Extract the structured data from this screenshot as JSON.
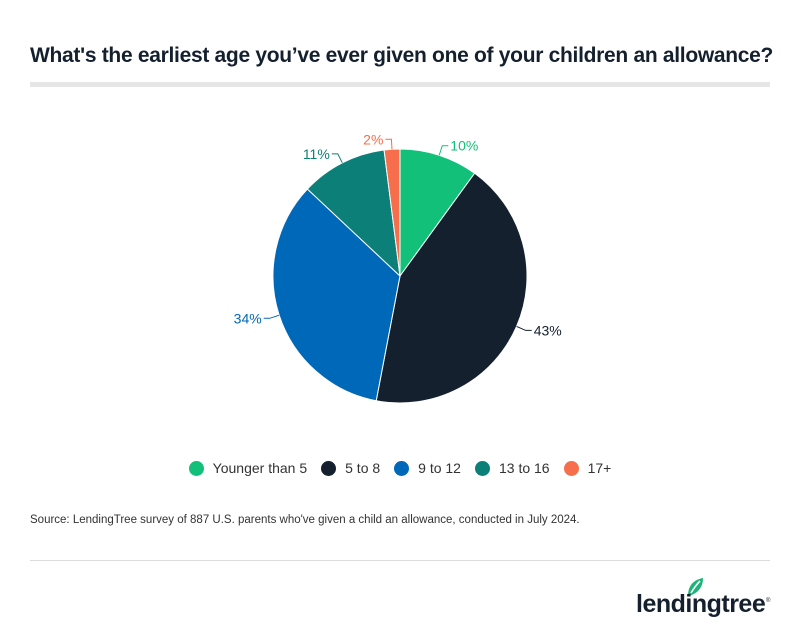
{
  "title": "What's the earliest age you’ve ever given one of your children an allowance?",
  "source": "Source: LendingTree survey of 887 U.S. parents who've given a child an allowance, conducted in July 2024.",
  "brand": {
    "name": "lendingtree",
    "registered_mark": "®",
    "leaf_color": "#1db37a",
    "text_color": "#14202e"
  },
  "chart_data": {
    "type": "pie",
    "title": "What's the earliest age you’ve ever given one of your children an allowance?",
    "categories": [
      "Younger than 5",
      "5 to 8",
      "9 to 12",
      "13 to 16",
      "17+"
    ],
    "values": [
      10,
      43,
      34,
      11,
      2
    ],
    "labels": [
      "10%",
      "43%",
      "34%",
      "11%",
      "2%"
    ],
    "colors": [
      "#13c07a",
      "#14202e",
      "#0068b8",
      "#0c7f78",
      "#f76e4c"
    ],
    "label_colors": [
      "#13c07a",
      "#14202e",
      "#0068b8",
      "#0c7f78",
      "#f76e4c"
    ],
    "start_angle": "12 o'clock, clockwise",
    "legend_position": "bottom",
    "unit": "%"
  },
  "legend": [
    {
      "label": "Younger than 5",
      "color": "#13c07a"
    },
    {
      "label": "5 to 8",
      "color": "#14202e"
    },
    {
      "label": "9 to 12",
      "color": "#0068b8"
    },
    {
      "label": "13 to 16",
      "color": "#0c7f78"
    },
    {
      "label": "17+",
      "color": "#f76e4c"
    }
  ]
}
